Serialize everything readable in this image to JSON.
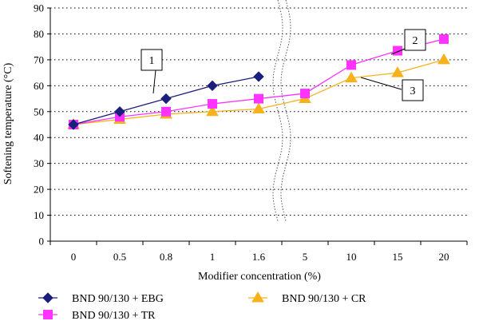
{
  "chart_data": {
    "type": "line",
    "title": "",
    "xlabel": "Modifier concentration (%)",
    "ylabel": "Softening temperature (°C)",
    "categories": [
      "0",
      "0.5",
      "0.8",
      "1",
      "1.6",
      "5",
      "10",
      "15",
      "20"
    ],
    "y_ticks": [
      "0",
      "10",
      "20",
      "30",
      "40",
      "50",
      "60",
      "70",
      "80",
      "90"
    ],
    "ylim": [
      0,
      90
    ],
    "grid": "horizontal dotted",
    "axis_break": "between 1.6 and 5",
    "legend_position": "bottom",
    "series": [
      {
        "name": "BND 90/130 + EBG",
        "marker": "diamond",
        "color": "#1a1f7a",
        "values": [
          45,
          50,
          55,
          60,
          63.5,
          null,
          null,
          null,
          null
        ]
      },
      {
        "name": "BND 90/130 + TR",
        "marker": "square",
        "color": "#ff33ff",
        "values": [
          45,
          48,
          50,
          53,
          55,
          57,
          68,
          73.5,
          78
        ]
      },
      {
        "name": "BND 90/130 + CR",
        "marker": "triangle",
        "color": "#f5b21b",
        "values": [
          45,
          47,
          49,
          50,
          51,
          55,
          63,
          65,
          70
        ]
      }
    ],
    "callouts": [
      "1",
      "2",
      "3"
    ]
  }
}
